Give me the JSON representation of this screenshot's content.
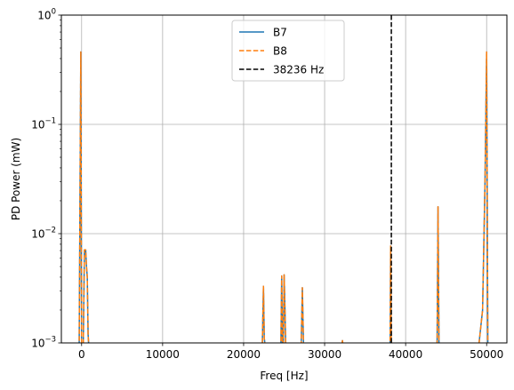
{
  "chart_data": {
    "type": "line",
    "title": "",
    "xlabel": "Freq [Hz]",
    "ylabel": "PD Power (mW)",
    "xlim": [
      -2500,
      52500
    ],
    "ylim": [
      0.001,
      1.0
    ],
    "yscale": "log",
    "grid": true,
    "legend_position": "top-center",
    "x_ticks": [
      {
        "value": 0,
        "label": "0"
      },
      {
        "value": 10000,
        "label": "10000"
      },
      {
        "value": 20000,
        "label": "20000"
      },
      {
        "value": 30000,
        "label": "30000"
      },
      {
        "value": 40000,
        "label": "40000"
      },
      {
        "value": 50000,
        "label": "50000"
      }
    ],
    "y_ticks": [
      {
        "value": 0.001,
        "base": "10",
        "exp": "−3"
      },
      {
        "value": 0.01,
        "base": "10",
        "exp": "−2"
      },
      {
        "value": 0.1,
        "base": "10",
        "exp": "−1"
      },
      {
        "value": 1,
        "base": "10",
        "exp": "0"
      }
    ],
    "series": [
      {
        "name": "B7",
        "color": "#1f77b4",
        "linestyle": "solid",
        "x": [
          -300,
          -100,
          0,
          100,
          200,
          350,
          500,
          600,
          700,
          800,
          900,
          1000,
          22300,
          22450,
          22550,
          22700,
          24600,
          24700,
          24800,
          24900,
          25000,
          25100,
          25200,
          25300,
          27100,
          27250,
          27400,
          32100,
          32200,
          32300,
          38080,
          38150,
          38220,
          38300,
          43880,
          44000,
          44120,
          49000,
          49500,
          49800,
          50000,
          50150
        ],
        "y": [
          0.0009,
          0.46,
          0.001,
          0.0009,
          0.0009,
          0.0071,
          0.0071,
          0.005,
          0.004,
          0.0012,
          0.0009,
          0.0009,
          0.0009,
          0.0033,
          0.0011,
          0.0009,
          0.0009,
          0.0041,
          0.0009,
          0.0009,
          0.0042,
          0.0021,
          0.0009,
          0.0009,
          0.0009,
          0.0032,
          0.0009,
          0.0009,
          0.00105,
          0.0009,
          0.0009,
          0.0077,
          0.0009,
          0.0009,
          0.0009,
          0.0176,
          0.0009,
          0.0009,
          0.002,
          0.03,
          0.46,
          0.0009
        ]
      },
      {
        "name": "B8",
        "color": "#ff7f0e",
        "linestyle": "dashed",
        "x": [
          -300,
          -100,
          0,
          100,
          200,
          350,
          500,
          600,
          700,
          800,
          900,
          1000,
          22300,
          22450,
          22550,
          22700,
          24600,
          24700,
          24800,
          24900,
          25000,
          25100,
          25200,
          25300,
          27100,
          27250,
          27400,
          32100,
          32200,
          32300,
          38080,
          38150,
          38220,
          38300,
          43880,
          44000,
          44120,
          49000,
          49500,
          49800,
          50000,
          50150
        ],
        "y": [
          0.0009,
          0.46,
          0.001,
          0.0009,
          0.0009,
          0.0071,
          0.0071,
          0.005,
          0.004,
          0.0012,
          0.0009,
          0.0009,
          0.0009,
          0.0033,
          0.0011,
          0.0009,
          0.0009,
          0.0041,
          0.0009,
          0.0009,
          0.0042,
          0.0021,
          0.0009,
          0.0009,
          0.0009,
          0.0032,
          0.0009,
          0.0009,
          0.00105,
          0.0009,
          0.0009,
          0.0077,
          0.0009,
          0.0009,
          0.0009,
          0.0176,
          0.0009,
          0.0009,
          0.002,
          0.03,
          0.46,
          0.0009
        ]
      }
    ],
    "vlines": [
      {
        "name": "38236 Hz",
        "x": 38236,
        "color": "#000000",
        "linestyle": "dashed"
      }
    ],
    "legend": [
      {
        "label": "B7",
        "color": "#1f77b4",
        "linestyle": "solid"
      },
      {
        "label": "B8",
        "color": "#ff7f0e",
        "linestyle": "dashed"
      },
      {
        "label": "38236 Hz",
        "color": "#000000",
        "linestyle": "dashed"
      }
    ]
  }
}
